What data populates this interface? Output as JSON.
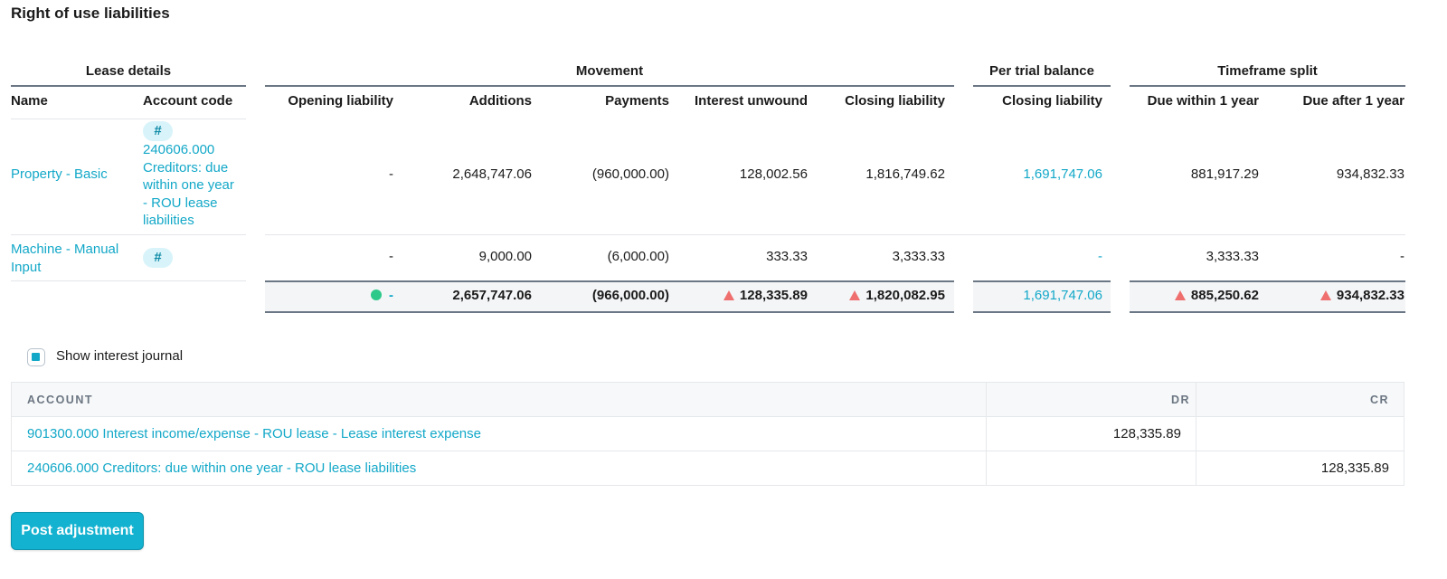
{
  "title": "Right of use liabilities",
  "groups": {
    "lease_details": "Lease details",
    "movement": "Movement",
    "per_trial_balance": "Per trial balance",
    "timeframe_split": "Timeframe split"
  },
  "columns": {
    "name": "Name",
    "account_code": "Account code",
    "opening_liability": "Opening liability",
    "additions": "Additions",
    "payments": "Payments",
    "interest_unwound": "Interest unwound",
    "closing_liability": "Closing liability",
    "tb_closing_liability": "Closing liability",
    "due_within": "Due within 1 year",
    "due_after": "Due after 1 year"
  },
  "rows": [
    {
      "name": "Property - Basic",
      "account_badge": "#",
      "account_text": "240606.000 Creditors: due within one year - ROU lease liabilities",
      "opening": "-",
      "additions": "2,648,747.06",
      "payments": "(960,000.00)",
      "interest": "128,002.56",
      "closing": "1,816,749.62",
      "tb_closing": "1,691,747.06",
      "due_within": "881,917.29",
      "due_after": "934,832.33"
    },
    {
      "name_line1": "Machine - Manual",
      "name_line2": "Input",
      "account_badge": "#",
      "opening": "-",
      "additions": "9,000.00",
      "payments": "(6,000.00)",
      "interest": "333.33",
      "closing": "3,333.33",
      "tb_closing": "-",
      "due_within": "3,333.33",
      "due_after": "-"
    }
  ],
  "totals": {
    "opening": "-",
    "additions": "2,657,747.06",
    "payments": "(966,000.00)",
    "interest": "128,335.89",
    "closing": "1,820,082.95",
    "tb_closing": "1,691,747.06",
    "due_within": "885,250.62",
    "due_after": "934,832.33"
  },
  "status_colors": {
    "ok": "#2dc98a",
    "warning": "#ef6f6f",
    "accent": "#13a8c8"
  },
  "show_interest_journal": {
    "label": "Show interest journal",
    "checked": true
  },
  "journal": {
    "headers": {
      "account": "ACCOUNT",
      "dr": "DR",
      "cr": "CR"
    },
    "lines": [
      {
        "account": "901300.000 Interest income/expense - ROU lease - Lease interest expense",
        "dr": "128,335.89",
        "cr": ""
      },
      {
        "account": "240606.000 Creditors: due within one year - ROU lease liabilities",
        "dr": "",
        "cr": "128,335.89"
      }
    ]
  },
  "post_button": "Post adjustment"
}
